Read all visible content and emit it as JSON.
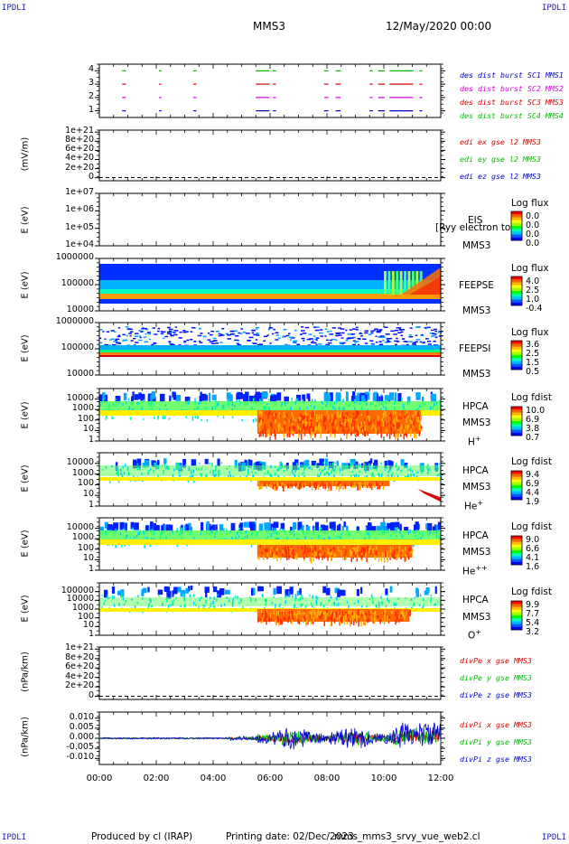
{
  "corners": {
    "tl": "IPDLI",
    "tr": "IPDLI",
    "bl": "IPDLI",
    "br": "IPDLI"
  },
  "header": {
    "spacecraft": "MMS3",
    "date": "12/May/2020 00:00"
  },
  "footer": {
    "produced": "Produced by cl (IRAP)",
    "printing": "Printing date: 02/Dec/2023",
    "file": "mms_mms3_srvy_vue_web2.cl"
  },
  "colors": {
    "blue": "#0000cc",
    "magenta": "#dd00dd",
    "red": "#dd0000",
    "green": "#00bb00",
    "orange": "#ff8800"
  },
  "xaxis": {
    "ticks": [
      "00:00",
      "02:00",
      "04:00",
      "06:00",
      "08:00",
      "10:00",
      "12:00"
    ]
  },
  "chart_data": [
    {
      "type": "scatter",
      "id": "burst",
      "y_ticks": [
        "1",
        "2",
        "3",
        "4"
      ],
      "ylim": [
        0.5,
        4.5
      ],
      "series": [
        {
          "name": "des dist burst SC1 MMS1",
          "color": "#0000cc",
          "level": 1
        },
        {
          "name": "des dist burst SC2 MMS2",
          "color": "#dd00dd",
          "level": 2
        },
        {
          "name": "des dist burst SC3 MMS3",
          "color": "#dd0000",
          "level": 3
        },
        {
          "name": "des dist burst SC4 MMS4",
          "color": "#00bb00",
          "level": 4
        }
      ],
      "intervals_hours": [
        [
          0.8,
          0.9
        ],
        [
          2.1,
          2.15
        ],
        [
          3.3,
          3.38
        ],
        [
          5.5,
          5.95
        ],
        [
          6.1,
          6.18
        ],
        [
          7.9,
          8.02
        ],
        [
          8.3,
          8.45
        ],
        [
          9.5,
          9.58
        ],
        [
          9.8,
          10.0
        ],
        [
          10.2,
          11.0
        ],
        [
          11.25,
          11.32
        ]
      ]
    },
    {
      "type": "line",
      "id": "edi",
      "ylabel": "(mV/m)",
      "y_ticks": [
        "0",
        "2e+20",
        "4e+20",
        "6e+20",
        "8e+20",
        "1e+21"
      ],
      "series": [
        {
          "name": "edi ex gse l2 MMS3",
          "color": "#dd0000"
        },
        {
          "name": "edi ey gse l2 MMS3",
          "color": "#00bb00"
        },
        {
          "name": "edi ez gse l2 MMS3",
          "color": "#0000cc"
        }
      ]
    },
    {
      "type": "heatmap",
      "id": "eis",
      "ylabel": "E (eV)",
      "y_ticks": [
        "1e+04",
        "1e+05",
        "1e+06",
        "1e+07"
      ],
      "instrument": "EIS",
      "spacecraft": "MMS3",
      "overlap_text": "[Ryy electron to",
      "colorbar": {
        "title": "Log flux",
        "values": [
          "0.0",
          "0.0",
          "0.0",
          "0.0"
        ]
      }
    },
    {
      "type": "heatmap",
      "id": "feepse",
      "ylabel": "E (eV)",
      "y_ticks": [
        "10000",
        "100000",
        "1000000"
      ],
      "instrument": "FEEPSE",
      "spacecraft": "MMS3",
      "colorbar": {
        "title": "Log flux",
        "values": [
          "4.0",
          "2.5",
          "1.0",
          "-0.4"
        ]
      }
    },
    {
      "type": "heatmap",
      "id": "feepsi",
      "ylabel": "E (eV)",
      "y_ticks": [
        "10000",
        "100000",
        "1000000"
      ],
      "instrument": "FEEPSI",
      "spacecraft": "MMS3",
      "colorbar": {
        "title": "Log flux",
        "values": [
          "3.6",
          "2.5",
          "1.5",
          "0.5"
        ]
      }
    },
    {
      "type": "heatmap",
      "id": "hpca-h",
      "ylabel": "E (eV)",
      "y_ticks": [
        "1",
        "10",
        "100",
        "1000",
        "10000"
      ],
      "instrument": "HPCA",
      "spacecraft": "MMS3",
      "species": "H",
      "charge": "+",
      "colorbar": {
        "title": "Log fdist",
        "values": [
          "10.0",
          "6.9",
          "3.8",
          "0.7"
        ]
      }
    },
    {
      "type": "heatmap",
      "id": "hpca-he",
      "ylabel": "E (eV)",
      "y_ticks": [
        "1",
        "10",
        "100",
        "1000",
        "10000"
      ],
      "instrument": "HPCA",
      "spacecraft": "MMS3",
      "species": "He",
      "charge": "+",
      "colorbar": {
        "title": "Log fdist",
        "values": [
          "9.4",
          "6.9",
          "4.4",
          "1.9"
        ]
      }
    },
    {
      "type": "heatmap",
      "id": "hpca-he2",
      "ylabel": "E (eV)",
      "y_ticks": [
        "1",
        "10",
        "100",
        "1000",
        "10000"
      ],
      "instrument": "HPCA",
      "spacecraft": "MMS3",
      "species": "He",
      "charge": "++",
      "colorbar": {
        "title": "Log fdist",
        "values": [
          "9.0",
          "6.6",
          "4.1",
          "1.6"
        ]
      }
    },
    {
      "type": "heatmap",
      "id": "hpca-o",
      "ylabel": "E (eV)",
      "y_ticks": [
        "1",
        "10",
        "100",
        "1000",
        "10000",
        "100000"
      ],
      "instrument": "HPCA",
      "spacecraft": "MMS3",
      "species": "O",
      "charge": "+",
      "colorbar": {
        "title": "Log fdist",
        "values": [
          "9.9",
          "7.7",
          "5.4",
          "3.2"
        ]
      }
    },
    {
      "type": "line",
      "id": "divpe",
      "ylabel": "(nPa/km)",
      "y_ticks": [
        "0",
        "2e+20",
        "4e+20",
        "6e+20",
        "8e+20",
        "1e+21"
      ],
      "series": [
        {
          "name": "divPe x gse MMS3",
          "color": "#dd0000"
        },
        {
          "name": "divPe y gse MMS3",
          "color": "#00bb00"
        },
        {
          "name": "divPe z gse MMS3",
          "color": "#0000cc"
        }
      ]
    },
    {
      "type": "line",
      "id": "divpi",
      "ylabel": "(nPa/km)",
      "y_ticks": [
        "-0.010",
        "-0.005",
        "0.000",
        "0.005",
        "0.010"
      ],
      "ylim": [
        -0.013,
        0.013
      ],
      "series": [
        {
          "name": "divPi x gse MMS3",
          "color": "#dd0000"
        },
        {
          "name": "divPi y gse MMS3",
          "color": "#00bb00"
        },
        {
          "name": "divPi z gse MMS3",
          "color": "#0000cc"
        }
      ]
    }
  ]
}
